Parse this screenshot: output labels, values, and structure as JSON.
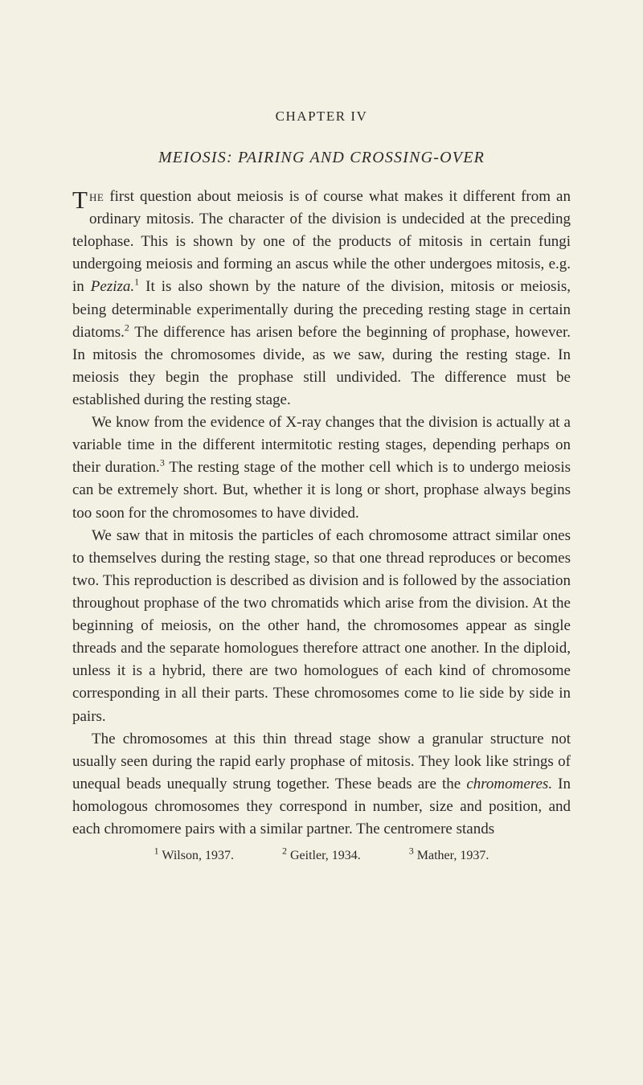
{
  "chapterLabel": "CHAPTER IV",
  "chapterTitle": "MEIOSIS: PAIRING AND CROSSING-OVER",
  "dropCap": "T",
  "para1_caps": "he",
  "para1_rest": " first question about meiosis is of course what makes it different from an ordinary mitosis. The character of the division is undecided at the preceding telophase. This is shown by one of the products of mitosis in certain fungi undergoing meiosis and forming an ascus while the other undergoes mitosis, e.g. in ",
  "para1_italic1": "Peziza.",
  "para1_sup1": "1",
  "para1_cont1": " It is also shown by the nature of the division, mitosis or meiosis, being determinable experimentally during the preceding resting stage in certain diatoms.",
  "para1_sup2": "2",
  "para1_cont2": " The difference has arisen before the beginning of prophase, however. In mitosis the chromosomes divide, as we saw, during the resting stage. In meiosis they begin the prophase still undivided. The difference must be established during the resting stage.",
  "para2_a": "We know from the evidence of X-ray changes that the division is actually at a variable time in the different intermitotic resting stages, depending perhaps on their duration.",
  "para2_sup": "3",
  "para2_b": " The resting stage of the mother cell which is to undergo meiosis can be extremely short. But, whether it is long or short, prophase always begins too soon for the chromosomes to have divided.",
  "para3": "We saw that in mitosis the particles of each chromosome attract similar ones to themselves during the resting stage, so that one thread reproduces or becomes two. This reproduction is described as division and is followed by the association throughout prophase of the two chromatids which arise from the division. At the beginning of meiosis, on the other hand, the chromosomes appear as single threads and the separate homologues therefore attract one another. In the diploid, unless it is a hybrid, there are two homologues of each kind of chromosome corresponding in all their parts. These chromosomes come to lie side by side in pairs.",
  "para4_a": "The chromosomes at this thin thread stage show a granular structure not usually seen during the rapid early prophase of mitosis. They look like strings of unequal beads unequally strung together. These beads are the ",
  "para4_italic": "chromomeres.",
  "para4_b": " In homologous chro­mosomes they correspond in number, size and position, and each chromomere pairs with a similar partner. The centromere stands",
  "fn1_sup": "1",
  "fn1_text": " Wilson, 1937.",
  "fn2_sup": "2",
  "fn2_text": " Geitler, 1934.",
  "fn3_sup": "3",
  "fn3_text": " Mather, 1937.",
  "colors": {
    "background": "#f3f1e4",
    "text": "#2a2a2a"
  },
  "typography": {
    "body_fontsize": 19,
    "chapter_label_fontsize": 17,
    "chapter_title_fontsize": 20,
    "dropcap_fontsize": 31,
    "footnote_fontsize": 16,
    "sup_fontsize": 12,
    "line_height": 1.48
  }
}
